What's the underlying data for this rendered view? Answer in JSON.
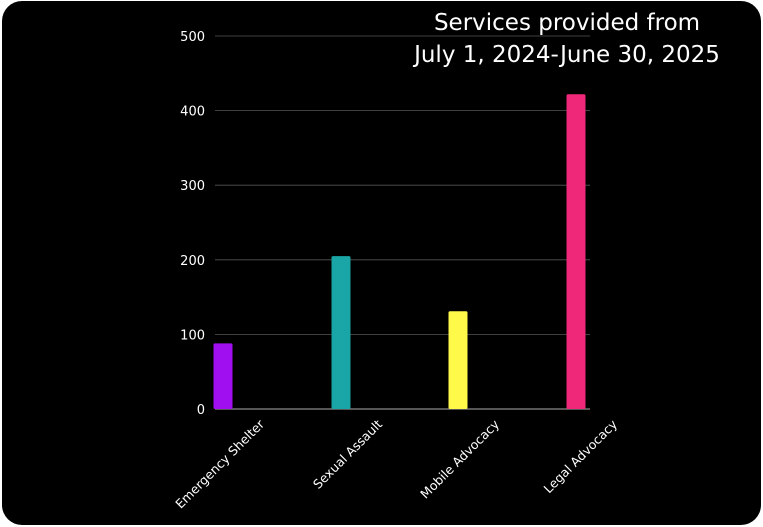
{
  "chart_data": {
    "type": "bar",
    "title_lines": [
      "Services provided from",
      "July 1, 2024-June 30, 2025"
    ],
    "categories": [
      "Emergency Shelter",
      "Sexual Assault",
      "Mobile Advocacy",
      "Legal Advocacy"
    ],
    "values": [
      88,
      205,
      131,
      422
    ],
    "colors": [
      "#a00ff0",
      "#1aa6a6",
      "#fff94a",
      "#f0287a"
    ],
    "ylim": [
      0,
      500
    ],
    "yticks": [
      0,
      100,
      200,
      300,
      400,
      500
    ],
    "grid": true,
    "background": "#000000",
    "grid_color": "#555555"
  }
}
